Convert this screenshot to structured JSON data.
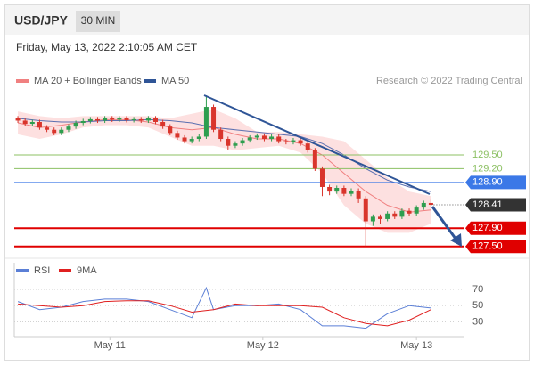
{
  "header": {
    "symbol": "USD/JPY",
    "timeframe": "30 MIN",
    "datetime": "Friday, May 13, 2022 2:10:05 AM CET"
  },
  "chart_data": [
    {
      "type": "candlestick",
      "credit": "Research © 2022 Trading Central",
      "xlim": [
        -0.5,
        61.5
      ],
      "ylim": [
        127.34,
        130.94
      ],
      "candles": {
        "up_color": "#2e9e4f",
        "down_color": "#d9352c",
        "open": [
          130.3,
          130.25,
          130.18,
          130.22,
          130.1,
          130.05,
          129.98,
          130.05,
          130.12,
          130.2,
          130.24,
          130.28,
          130.25,
          130.3,
          130.27,
          130.3,
          130.26,
          130.28,
          130.25,
          130.3,
          130.22,
          130.12,
          129.98,
          129.88,
          129.8,
          129.85,
          129.9,
          130.55,
          130.05,
          129.85,
          129.7,
          129.75,
          129.82,
          129.88,
          129.92,
          129.85,
          129.9,
          129.8,
          129.78,
          129.82,
          129.75,
          129.6,
          129.2,
          128.8,
          128.7,
          128.78,
          128.65,
          128.72,
          128.55,
          128.05,
          128.15,
          128.1,
          128.22,
          128.15,
          128.28,
          128.22,
          128.35,
          128.45
        ],
        "high": [
          130.35,
          130.3,
          130.27,
          130.27,
          130.15,
          130.1,
          130.1,
          130.17,
          130.25,
          130.29,
          130.33,
          130.33,
          130.35,
          130.35,
          130.35,
          130.35,
          130.33,
          130.33,
          130.35,
          130.35,
          130.27,
          130.17,
          130.03,
          129.93,
          129.9,
          129.95,
          130.8,
          130.6,
          130.1,
          129.9,
          129.8,
          129.87,
          129.93,
          129.97,
          129.97,
          129.95,
          129.95,
          129.85,
          129.87,
          129.87,
          129.8,
          129.65,
          129.25,
          128.85,
          128.83,
          128.83,
          128.77,
          128.77,
          128.6,
          128.2,
          128.2,
          128.27,
          128.27,
          128.33,
          128.33,
          128.4,
          128.5,
          128.52
        ],
        "low": [
          130.2,
          130.13,
          130.13,
          130.05,
          130.0,
          129.93,
          129.93,
          130.0,
          130.07,
          130.15,
          130.19,
          130.2,
          130.2,
          130.22,
          130.22,
          130.21,
          130.21,
          130.2,
          130.2,
          130.17,
          130.07,
          129.93,
          129.83,
          129.75,
          129.75,
          129.8,
          129.85,
          130.0,
          129.8,
          129.6,
          129.65,
          129.7,
          129.77,
          129.83,
          129.8,
          129.8,
          129.75,
          129.73,
          129.73,
          129.7,
          129.55,
          129.15,
          128.6,
          128.62,
          128.65,
          128.6,
          128.6,
          128.45,
          127.5,
          127.95,
          128.0,
          128.05,
          128.1,
          128.1,
          128.17,
          128.17,
          128.3,
          128.36
        ],
        "close": [
          130.25,
          130.18,
          130.22,
          130.1,
          130.05,
          129.98,
          130.05,
          130.12,
          130.2,
          130.24,
          130.28,
          130.25,
          130.3,
          130.27,
          130.3,
          130.26,
          130.28,
          130.25,
          130.3,
          130.22,
          130.12,
          129.98,
          129.88,
          129.8,
          129.85,
          129.9,
          130.55,
          130.05,
          129.85,
          129.7,
          129.75,
          129.82,
          129.88,
          129.92,
          129.85,
          129.9,
          129.8,
          129.78,
          129.82,
          129.75,
          129.6,
          129.2,
          128.8,
          128.7,
          128.78,
          128.65,
          128.72,
          128.55,
          128.05,
          128.15,
          128.1,
          128.22,
          128.15,
          128.28,
          128.22,
          128.35,
          128.45,
          128.41
        ]
      },
      "series": [
        {
          "name": "MA 20 + Bollinger Bands",
          "color": "#f08080",
          "band_color": "#fde0e0",
          "x": [
            0,
            3,
            6,
            9,
            12,
            15,
            18,
            21,
            24,
            27,
            30,
            33,
            36,
            39,
            42,
            45,
            48,
            51,
            54,
            57
          ],
          "values": [
            130.2,
            130.1,
            130.15,
            130.22,
            130.27,
            130.27,
            130.22,
            130.1,
            130.05,
            130.1,
            129.95,
            129.85,
            129.85,
            129.75,
            129.5,
            129.1,
            128.7,
            128.4,
            128.25,
            128.3
          ],
          "upper": [
            130.45,
            130.35,
            130.3,
            130.35,
            130.35,
            130.35,
            130.35,
            130.3,
            130.4,
            130.5,
            130.3,
            130.0,
            130.0,
            129.95,
            129.9,
            129.8,
            129.4,
            129.0,
            128.7,
            128.6
          ],
          "lower": [
            129.95,
            129.85,
            129.95,
            130.1,
            130.15,
            130.15,
            130.1,
            129.9,
            129.7,
            129.7,
            129.6,
            129.65,
            129.7,
            129.55,
            129.1,
            128.4,
            128.0,
            127.8,
            127.8,
            128.0
          ]
        },
        {
          "name": "MA 50",
          "color": "#5a6fb0",
          "x": [
            0,
            3,
            6,
            9,
            12,
            15,
            18,
            21,
            24,
            27,
            30,
            33,
            36,
            39,
            42,
            45,
            48,
            51,
            54,
            57
          ],
          "values": [
            130.3,
            130.25,
            130.22,
            130.22,
            130.25,
            130.25,
            130.27,
            130.25,
            130.2,
            130.1,
            130.05,
            130.0,
            129.95,
            129.9,
            129.75,
            129.5,
            129.2,
            128.95,
            128.8,
            128.7
          ]
        }
      ],
      "legend_colors": [
        "#f08080",
        "#2f5597"
      ],
      "levels": [
        {
          "value": 129.5,
          "label": "129.50",
          "color": "#8cc063",
          "boxed": false,
          "width": 1
        },
        {
          "value": 129.2,
          "label": "129.20",
          "color": "#8cc063",
          "boxed": false,
          "width": 1
        },
        {
          "value": 128.9,
          "label": "128.90",
          "color": "#3b78e7",
          "boxed": true,
          "width": 1
        },
        {
          "value": 127.9,
          "label": "127.90",
          "color": "#e00000",
          "boxed": true,
          "width": 2
        },
        {
          "value": 127.5,
          "label": "127.50",
          "color": "#e00000",
          "boxed": true,
          "width": 2
        }
      ],
      "last": {
        "value": 128.41,
        "label": "128.41",
        "color": "#333333"
      }
    },
    {
      "type": "line",
      "xlim": [
        -0.5,
        61.5
      ],
      "ylim": [
        15,
        103
      ],
      "yticks": [
        70,
        50,
        30
      ],
      "xticks": [
        {
          "value": 12.7,
          "label": "May 11"
        },
        {
          "value": 33.8,
          "label": "May 12"
        },
        {
          "value": 55.0,
          "label": "May 13"
        }
      ],
      "series": [
        {
          "name": "RSI",
          "color": "#5b7fd6",
          "x": [
            0,
            3,
            6,
            9,
            12,
            15,
            18,
            21,
            24,
            26,
            27,
            30,
            33,
            36,
            39,
            42,
            45,
            48,
            51,
            54,
            57
          ],
          "values": [
            55,
            45,
            48,
            55,
            58,
            58,
            55,
            45,
            35,
            72,
            45,
            50,
            50,
            52,
            45,
            25,
            25,
            22,
            40,
            50,
            47
          ]
        },
        {
          "name": "9MA",
          "color": "#e02020",
          "x": [
            0,
            3,
            6,
            9,
            12,
            15,
            18,
            21,
            24,
            27,
            30,
            33,
            36,
            39,
            42,
            45,
            48,
            51,
            54,
            57
          ],
          "values": [
            52,
            50,
            48,
            50,
            55,
            56,
            56,
            50,
            42,
            45,
            52,
            50,
            50,
            50,
            48,
            35,
            28,
            25,
            32,
            45
          ]
        }
      ]
    }
  ]
}
